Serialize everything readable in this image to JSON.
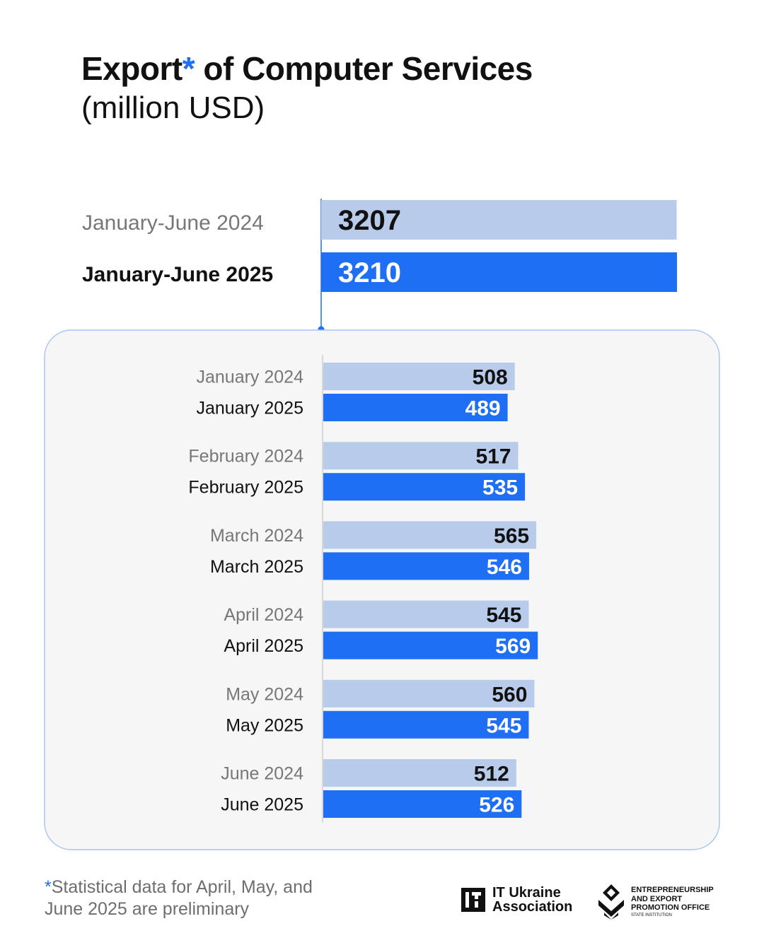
{
  "chart_data": {
    "type": "bar",
    "orientation": "horizontal",
    "title": "Export* of Computer Services",
    "title_main": "Export",
    "title_star": "*",
    "title_rest": " of Computer Services",
    "subtitle": "(million USD)",
    "summary": {
      "categories": [
        "January-June 2024",
        "January-June 2025"
      ],
      "values": [
        3207,
        3210
      ]
    },
    "monthly": {
      "categories": [
        "January",
        "February",
        "March",
        "April",
        "May",
        "June"
      ],
      "series": [
        {
          "name": "2024",
          "labels": [
            "January 2024",
            "February 2024",
            "March 2024",
            "April 2024",
            "May 2024",
            "June 2024"
          ],
          "values": [
            508,
            517,
            565,
            545,
            560,
            512
          ]
        },
        {
          "name": "2025",
          "labels": [
            "January 2025",
            "February 2025",
            "March 2025",
            "April 2025",
            "May 2025",
            "June 2025"
          ],
          "values": [
            489,
            535,
            546,
            569,
            545,
            526
          ]
        }
      ]
    },
    "colors": {
      "year_2024": "#b8cbea",
      "year_2025": "#1f6ff5",
      "label_2024": "#777777",
      "label_2025": "#111111",
      "panel_fill": "#f6f6f6",
      "panel_border": "#a9c4f2"
    }
  },
  "footnote": {
    "star": "*",
    "text": "Statistical data for April, May, and June 2025 are preliminary"
  },
  "logos": {
    "it_ukraine": {
      "line1": "IT Ukraine",
      "line2": "Association",
      "icon": "it-ukraine-logo-icon"
    },
    "eepo": {
      "line1": "ENTREPRENEURSHIP",
      "line2": "AND EXPORT",
      "line3": "PROMOTION OFFICE",
      "line4": "STATE INSTITUTION",
      "icon": "eepo-logo-icon"
    }
  }
}
